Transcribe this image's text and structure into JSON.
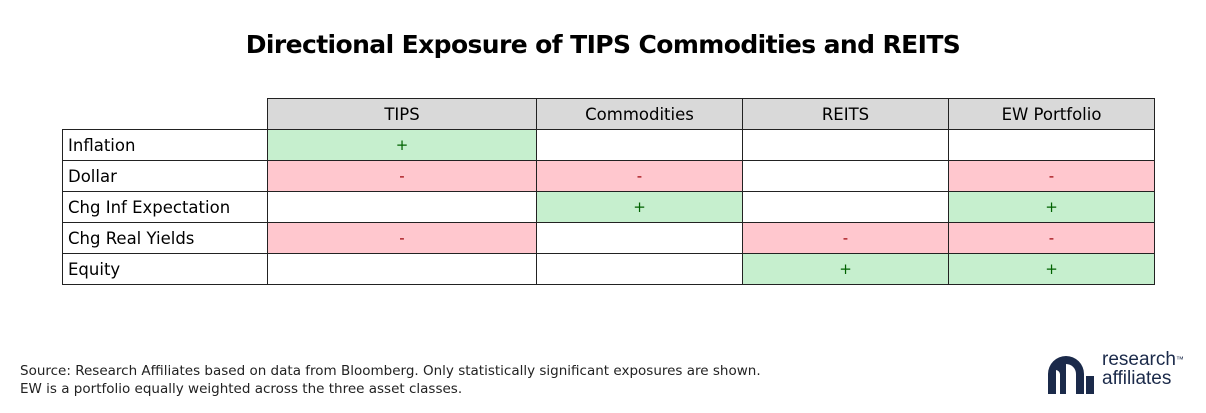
{
  "chart_data": {
    "type": "table",
    "title": "Directional Exposure of TIPS Commodities and REITS",
    "columns": [
      "TIPS",
      "Commodities",
      "REITS",
      "EW Portfolio"
    ],
    "rows": [
      {
        "label": "Inflation",
        "values": [
          "+",
          "",
          "",
          ""
        ]
      },
      {
        "label": "Dollar",
        "values": [
          "-",
          "-",
          "",
          "-"
        ]
      },
      {
        "label": "Chg Inf Expectation",
        "values": [
          "",
          "+",
          "",
          "+"
        ]
      },
      {
        "label": "Chg Real Yields",
        "values": [
          "-",
          "",
          "-",
          "-"
        ]
      },
      {
        "label": "Equity",
        "values": [
          "",
          "",
          "+",
          "+"
        ]
      }
    ],
    "colors": {
      "positive_fill": "#c6efce",
      "positive_text": "#006100",
      "negative_fill": "#ffc7ce",
      "negative_text": "#9c0006",
      "header_fill": "#d9d9d9"
    }
  },
  "footer": {
    "source_line1": "Source: Research Affiliates based on data from Bloomberg. Only statistically significant exposures are shown.",
    "source_line2": "EW is a portfolio equally weighted across the three asset classes."
  },
  "logo": {
    "line1": "research",
    "line2": "affiliates",
    "mark": "™",
    "brand_color": "#1b2a4a"
  }
}
